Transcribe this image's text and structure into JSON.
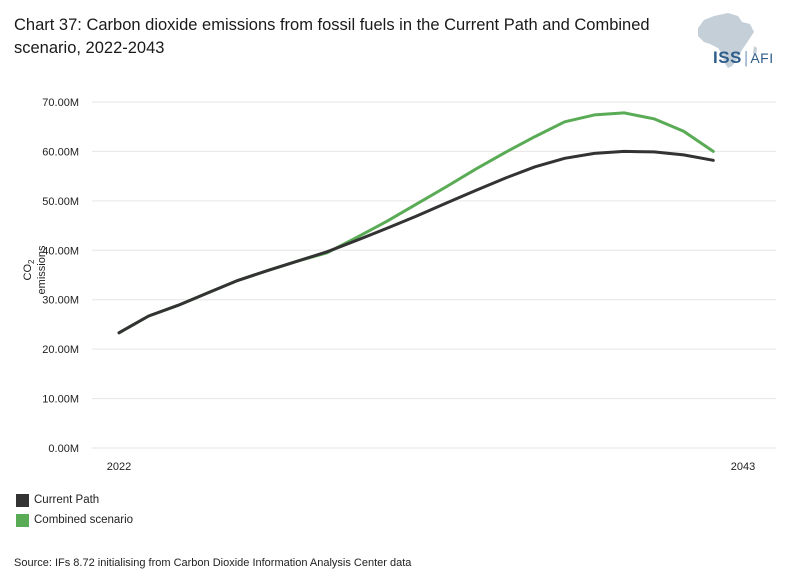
{
  "header": {
    "title": "Chart 37: Carbon dioxide emissions from fossil fuels in the Current Path and Combined scenario, 2022-2043"
  },
  "logo": {
    "iss": "ISS",
    "separator": "|",
    "afi": "AFI"
  },
  "footer": {
    "source": "Source: IFs 8.72 initialising from Carbon Dioxide Information Analysis Center data"
  },
  "colors": {
    "current_path": "#333333",
    "combined": "#5aab55",
    "grid": "#e6e6e6"
  },
  "chart_data": {
    "type": "line",
    "title": "Chart 37: Carbon dioxide emissions from fossil fuels in the Current Path and Combined scenario, 2022-2043",
    "ylabel": "CO2 emissions",
    "ylim": [
      0,
      70000000
    ],
    "yticks": [
      0,
      10000000,
      20000000,
      30000000,
      40000000,
      50000000,
      60000000,
      70000000
    ],
    "ytick_labels": [
      "0.00M",
      "10.00M",
      "20.00M",
      "30.00M",
      "40.00M",
      "50.00M",
      "60.00M",
      "70.00M"
    ],
    "xtick_labels": [
      "2022",
      "2043"
    ],
    "grid": true,
    "legend_position": "bottom-left",
    "x": [
      2022,
      2023,
      2024,
      2025,
      2026,
      2027,
      2028,
      2029,
      2030,
      2031,
      2032,
      2033,
      2034,
      2035,
      2036,
      2037,
      2038,
      2039,
      2040,
      2041,
      2042,
      2043
    ],
    "series": [
      {
        "name": "Current Path",
        "values": [
          23.3,
          26.7,
          28.9,
          31.4,
          33.9,
          35.9,
          37.8,
          39.7,
          42.0,
          44.4,
          46.9,
          49.5,
          52.1,
          54.6,
          56.9,
          58.6,
          59.6,
          60.0,
          59.9,
          59.3,
          58.2,
          null
        ]
      },
      {
        "name": "Combined scenario",
        "values": [
          23.3,
          26.7,
          28.9,
          31.4,
          33.9,
          35.9,
          37.8,
          39.5,
          42.6,
          45.8,
          49.3,
          52.8,
          56.4,
          59.8,
          63.0,
          66.0,
          67.4,
          67.8,
          66.6,
          64.1,
          60.0,
          null
        ]
      }
    ]
  }
}
